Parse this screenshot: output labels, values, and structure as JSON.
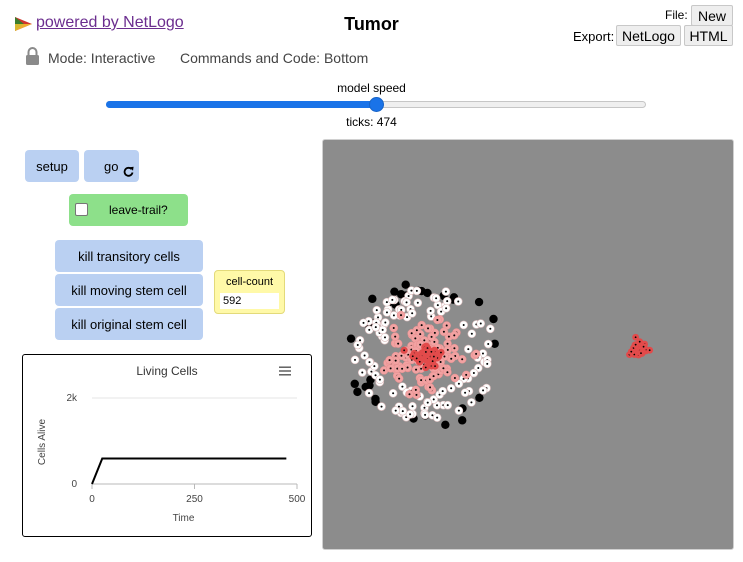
{
  "header": {
    "powered_by": "powered by NetLogo",
    "title": "Tumor",
    "file_label": "File:",
    "new_label": "New",
    "export_label": "Export:",
    "export_netlogo_label": "NetLogo",
    "export_html_label": "HTML",
    "mode_text": "Mode: Interactive",
    "commands_text": "Commands and Code: Bottom"
  },
  "speed": {
    "label": "model speed",
    "value": 0.5,
    "ticks_text": "ticks: 474"
  },
  "widgets": {
    "setup_label": "setup",
    "go_label": "go",
    "leave_trail_label": "leave-trail?",
    "leave_trail_checked": false,
    "kill_transitory_label": "kill transitory cells",
    "kill_moving_stem_label": "kill moving stem cell",
    "kill_original_stem_label": "kill original stem cell",
    "cell_count": {
      "label": "cell-count",
      "value": "592"
    }
  },
  "icons": {
    "logo": "netlogo-logo-icon",
    "lock": "lock-icon",
    "go_forever": "forever-loop-icon",
    "plot_menu": "hamburger-menu-icon"
  },
  "colors": {
    "button": "#bad0f2",
    "switch": "#8de08a",
    "monitor": "#fff9a8",
    "slider": "#1a73e8",
    "view_background": "#8c8c8c",
    "cell_pink": "#f2a2a2",
    "cell_red": "#e24b4b",
    "cell_white": "#ffffff",
    "cell_black": "#000000"
  },
  "chart_data": {
    "type": "line",
    "title": "Living Cells",
    "xlabel": "Time",
    "ylabel": "Cells Alive",
    "xlim": [
      0,
      500
    ],
    "ylim": [
      0,
      2000
    ],
    "x_ticks": [
      "0",
      "250",
      "500"
    ],
    "y_ticks": [
      "0",
      "2k"
    ],
    "grid": true,
    "series": [
      {
        "color": "#000000",
        "x": [
          0,
          25,
          474
        ],
        "y": [
          0,
          592,
          592
        ]
      }
    ]
  }
}
